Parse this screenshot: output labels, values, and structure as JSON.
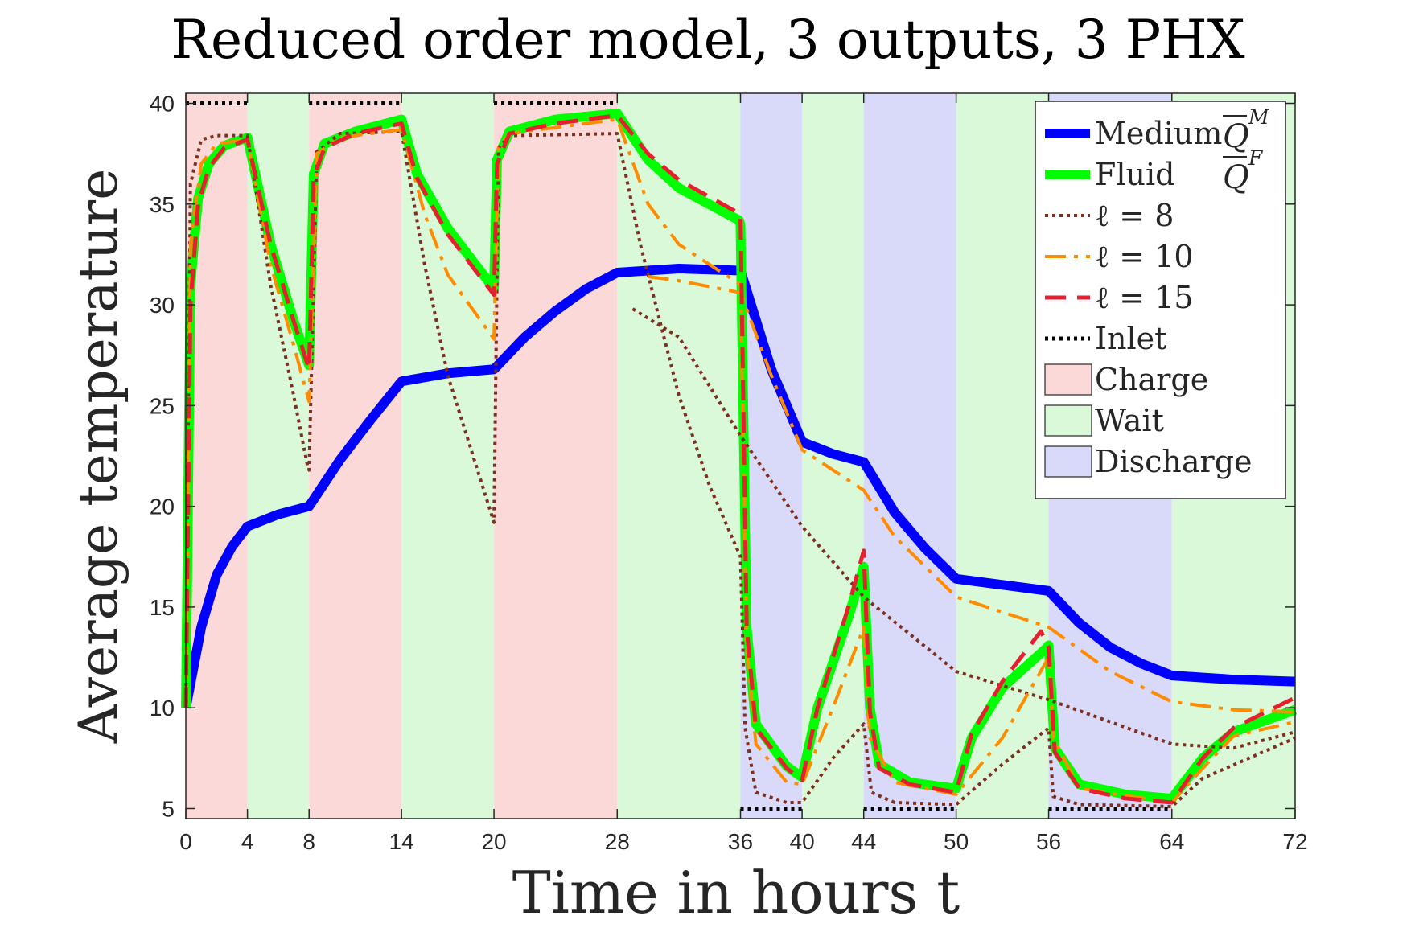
{
  "chart_data": {
    "type": "line",
    "title": "Reduced order model, 3 outputs, 3 PHX",
    "xlabel": "Time in hours t",
    "ylabel": "Average temperature",
    "xlim": [
      0,
      72
    ],
    "ylim": [
      4.5,
      40.5
    ],
    "xticks": [
      0,
      4,
      8,
      14,
      20,
      28,
      36,
      40,
      44,
      50,
      56,
      64,
      72
    ],
    "yticks": [
      5,
      10,
      15,
      20,
      25,
      30,
      35,
      40
    ],
    "grid": false,
    "legend_position": "top-right",
    "phases": [
      {
        "name": "Charge",
        "start": 0,
        "end": 4
      },
      {
        "name": "Wait",
        "start": 4,
        "end": 8
      },
      {
        "name": "Charge",
        "start": 8,
        "end": 14
      },
      {
        "name": "Wait",
        "start": 14,
        "end": 20
      },
      {
        "name": "Charge",
        "start": 20,
        "end": 28
      },
      {
        "name": "Wait",
        "start": 28,
        "end": 36
      },
      {
        "name": "Discharge",
        "start": 36,
        "end": 40
      },
      {
        "name": "Wait",
        "start": 40,
        "end": 44
      },
      {
        "name": "Discharge",
        "start": 44,
        "end": 50
      },
      {
        "name": "Wait",
        "start": 50,
        "end": 56
      },
      {
        "name": "Discharge",
        "start": 56,
        "end": 64
      },
      {
        "name": "Wait",
        "start": 64,
        "end": 72
      }
    ],
    "phase_colors": {
      "Charge": "#fcd9d9",
      "Wait": "#d9f9d9",
      "Discharge": "#d9d9f9"
    },
    "series": [
      {
        "name": "Medium",
        "symbol": "Q",
        "superscript": "M",
        "color": "#0000ff",
        "style": "solid",
        "width": 12,
        "x": [
          0,
          1,
          2,
          3,
          4,
          6,
          8,
          10,
          12,
          14,
          17,
          20,
          22,
          24,
          26,
          28,
          30,
          32,
          36,
          38,
          40,
          42,
          44,
          46,
          48,
          50,
          52,
          54,
          56,
          58,
          60,
          62,
          64,
          68,
          72
        ],
        "y": [
          10,
          14,
          16.6,
          18,
          19,
          19.6,
          20,
          22.3,
          24.3,
          26.2,
          26.6,
          26.8,
          28.4,
          29.7,
          30.8,
          31.6,
          31.7,
          31.8,
          31.7,
          26.8,
          23.2,
          22.6,
          22.2,
          19.7,
          17.9,
          16.4,
          16.2,
          16,
          15.8,
          14.2,
          13,
          12.2,
          11.6,
          11.4,
          11.3
        ]
      },
      {
        "name": "Fluid",
        "symbol": "Q",
        "superscript": "F",
        "color": "#00ff00",
        "style": "solid",
        "width": 12,
        "x": [
          0,
          0.3,
          0.8,
          1.5,
          2.5,
          4,
          5.5,
          7,
          7.9,
          8,
          8.3,
          9,
          11,
          14,
          15,
          17,
          20,
          20.2,
          21,
          24,
          28,
          30,
          32,
          35.9,
          36,
          36.4,
          37,
          39,
          39.9,
          40,
          41,
          43,
          44,
          44.4,
          45,
          47,
          49.9,
          50,
          51,
          53,
          55.9,
          56,
          56.4,
          58,
          61,
          63.9,
          64,
          66,
          68,
          72
        ],
        "y": [
          10,
          31,
          35.3,
          37,
          37.9,
          38.3,
          33,
          29.2,
          27.2,
          27,
          36.5,
          38,
          38.6,
          39.2,
          36.5,
          33.8,
          30.8,
          37.2,
          38.6,
          39.2,
          39.5,
          37.2,
          35.8,
          34.2,
          34,
          14,
          9.2,
          7.1,
          6.6,
          6.6,
          10,
          14.5,
          17,
          10,
          7.2,
          6.3,
          6,
          6,
          8.5,
          11,
          13,
          13.1,
          8,
          6.2,
          5.7,
          5.5,
          5.5,
          7.5,
          8.8,
          9.9
        ]
      },
      {
        "name": "ℓ = 8",
        "color": "#7e2f1f",
        "style": "dotted",
        "width": 4,
        "x": [
          0,
          0.3,
          1,
          2,
          4,
          5.5,
          7,
          7.9,
          8,
          8.5,
          10,
          14,
          15.5,
          17,
          20,
          20.3,
          21,
          28,
          29.5,
          32,
          34,
          36,
          36.3,
          37,
          39,
          40,
          42,
          44,
          44.5,
          46,
          50,
          53,
          56,
          56.3,
          58,
          64,
          66,
          72,
          29,
          32,
          36,
          40,
          44,
          50,
          56,
          64,
          68,
          72
        ],
        "y": [
          10,
          36,
          38.2,
          38.4,
          38.4,
          31,
          25.5,
          22,
          21.8,
          37.6,
          38.5,
          38.6,
          32,
          26.5,
          19.2,
          37.8,
          38.4,
          38.5,
          33,
          25.5,
          21,
          17.5,
          9,
          5.8,
          5.3,
          5.3,
          7.5,
          9.2,
          5.8,
          5.3,
          5.2,
          7.2,
          9,
          5.6,
          5.2,
          5.1,
          6.5,
          8.5,
          29.8,
          28.4,
          23.5,
          19,
          15.5,
          11.8,
          10.4,
          8.2,
          8,
          8.8
        ]
      },
      {
        "name": "ℓ = 10",
        "color": "#ff8c00",
        "style": "dashdot",
        "width": 4,
        "x": [
          0,
          0.3,
          1,
          2,
          4,
          5.5,
          7,
          8,
          8.5,
          10,
          14,
          15.5,
          17,
          20,
          20.3,
          21,
          28,
          30,
          32,
          36,
          36.4,
          37,
          39,
          40,
          42,
          44,
          44.4,
          46,
          50,
          53,
          56,
          56.3,
          58,
          64,
          66,
          68,
          72,
          30,
          32,
          36,
          38,
          40,
          42,
          44,
          46,
          50,
          56,
          60,
          64,
          68,
          72
        ],
        "y": [
          10,
          33,
          37,
          38,
          38.2,
          32,
          28,
          25.2,
          37.5,
          38.3,
          38.7,
          34.5,
          31.5,
          28.3,
          37.8,
          38.5,
          39.2,
          35,
          33,
          31,
          13,
          8.2,
          6.3,
          6.2,
          10,
          14,
          8.5,
          6.3,
          5.7,
          8.5,
          12.5,
          8.5,
          6,
          5.3,
          7,
          8.6,
          9.3,
          31.4,
          31.2,
          30.6,
          26.5,
          22.8,
          21.8,
          20.8,
          18.5,
          15.5,
          14,
          11.8,
          10.3,
          9.9,
          9.8
        ]
      },
      {
        "name": "ℓ = 15",
        "color": "#e5202f",
        "style": "dashed",
        "width": 5,
        "x": [
          0,
          0.3,
          0.8,
          1.5,
          2.5,
          4,
          5.5,
          7,
          8,
          8.3,
          9,
          11,
          14,
          15,
          17,
          20,
          20.2,
          21,
          24,
          28,
          30,
          32,
          36,
          36.4,
          37,
          39,
          40,
          41,
          43,
          44,
          44.4,
          45,
          47,
          50,
          51,
          53,
          55.5,
          56,
          56.4,
          58,
          61,
          64,
          66,
          68,
          72
        ],
        "y": [
          10,
          30,
          35,
          36.8,
          37.8,
          38.2,
          33,
          29.2,
          26.8,
          36.3,
          37.8,
          38.5,
          39,
          36.3,
          33.5,
          30.5,
          37,
          38.5,
          39,
          39.4,
          37.5,
          36.2,
          34.5,
          14,
          9,
          7,
          6.4,
          10,
          15,
          17.8,
          9.8,
          7,
          6.2,
          5.8,
          8.7,
          11.3,
          13.8,
          13,
          7.8,
          6,
          5.5,
          5.3,
          7.5,
          9,
          10.5
        ]
      },
      {
        "name": "Inlet",
        "color": "#000000",
        "style": "dotted",
        "width": 5,
        "segments": [
          {
            "x": [
              0,
              4
            ],
            "y": [
              40,
              40
            ]
          },
          {
            "x": [
              8,
              14
            ],
            "y": [
              40,
              40
            ]
          },
          {
            "x": [
              20,
              28
            ],
            "y": [
              40,
              40
            ]
          },
          {
            "x": [
              36,
              40
            ],
            "y": [
              5,
              5
            ]
          },
          {
            "x": [
              44,
              50
            ],
            "y": [
              5,
              5
            ]
          },
          {
            "x": [
              56,
              64
            ],
            "y": [
              5,
              5
            ]
          }
        ]
      }
    ],
    "legend": {
      "entries": [
        "Medium",
        "Fluid",
        "ℓ = 8",
        "ℓ = 10",
        "ℓ = 15",
        "Inlet",
        "Charge",
        "Wait",
        "Discharge"
      ],
      "math_labels": [
        "Q",
        "Q"
      ],
      "math_superscripts": [
        "M",
        "F"
      ]
    }
  }
}
